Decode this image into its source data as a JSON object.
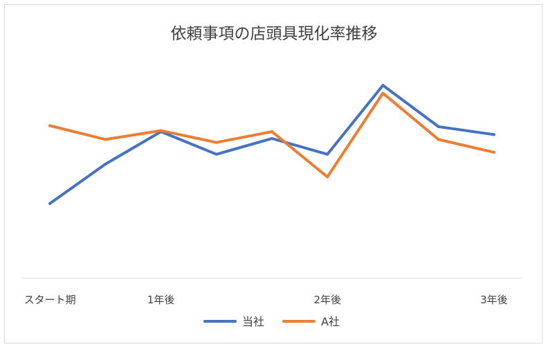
{
  "chart_data": {
    "type": "line",
    "title": "依頼事項の店頭具現化率推移",
    "categories": [
      "スタート期",
      "",
      "1年後",
      "",
      "",
      "2年後",
      "",
      "",
      "3年後"
    ],
    "series": [
      {
        "name": "当社",
        "color": "#4472c4",
        "values": [
          22,
          42,
          58.5,
          47,
          55,
          47,
          82,
          61,
          57
        ]
      },
      {
        "name": "A社",
        "color": "#ed7d31",
        "values": [
          61.5,
          54.5,
          59,
          53,
          58.5,
          35.5,
          78,
          54.5,
          48
        ]
      }
    ],
    "ylim": [
      -16,
      100
    ],
    "grid": false,
    "y_axis_labels": false,
    "legend": "bottom",
    "xlabel": "",
    "ylabel": ""
  }
}
